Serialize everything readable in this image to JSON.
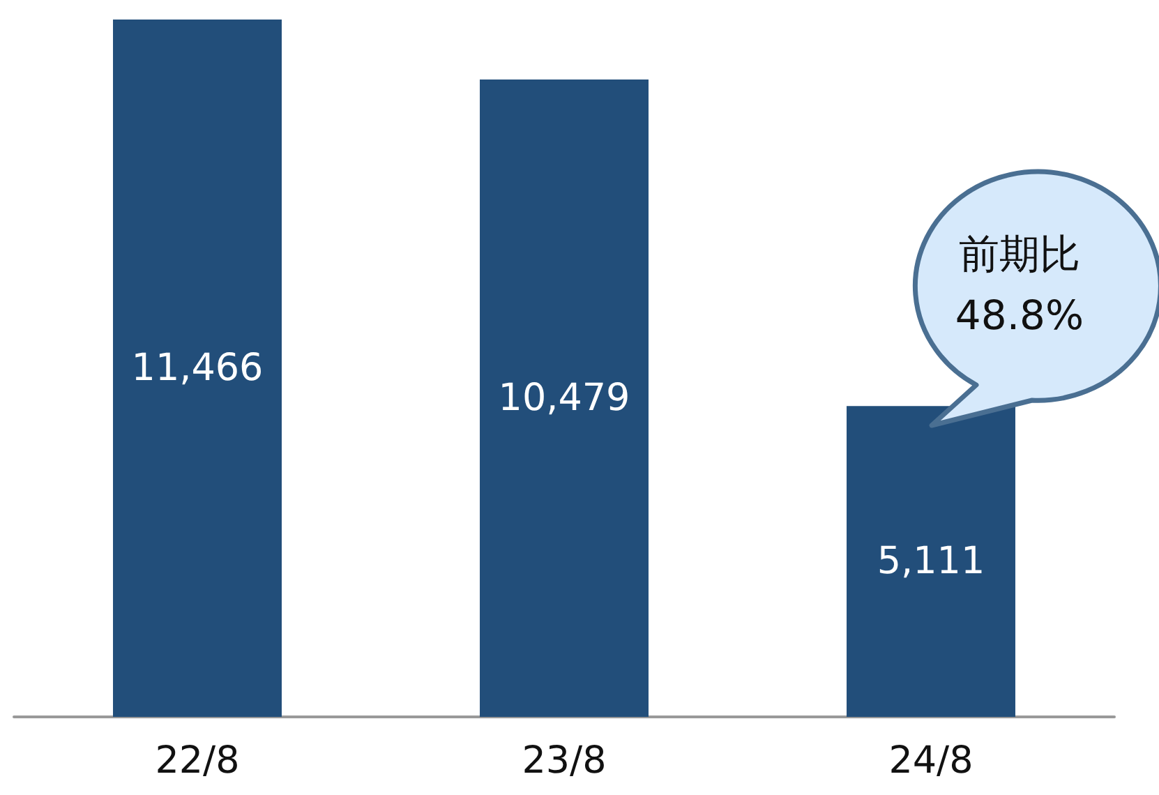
{
  "chart_data": {
    "type": "bar",
    "categories": [
      "22/8",
      "23/8",
      "24/8"
    ],
    "values": [
      11466,
      10479,
      5111
    ],
    "value_labels": [
      "11,466",
      "10,479",
      "5,111"
    ],
    "color": "#224e7a",
    "annotations": [
      "前期比\n48.8%"
    ]
  }
}
